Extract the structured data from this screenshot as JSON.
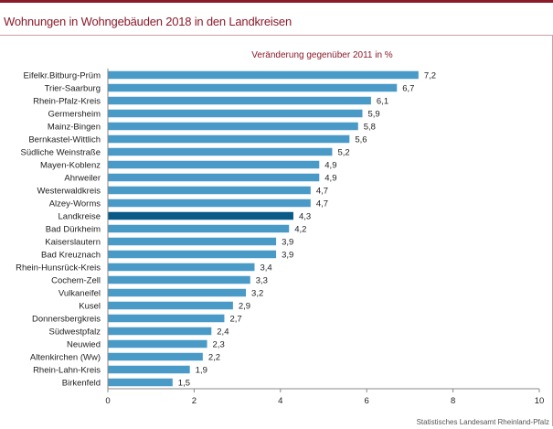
{
  "title": "Wohnungen in Wohngebäuden 2018 in den Landkreisen",
  "source": "Statistisches Landesamt Rheinland-Pfalz",
  "colors": {
    "bar": "#4a9ac8",
    "highlight": "#0a5a88",
    "title": "#8a1a2a",
    "axis": "#888888"
  },
  "chart_data": {
    "type": "bar",
    "orientation": "horizontal",
    "title": "Wohnungen in Wohngebäuden 2018 in den Landkreisen",
    "subtitle": "Veränderung gegenüber 2011 in %",
    "categories": [
      "Eifelkr.Bitburg-Prüm",
      "Trier-Saarburg",
      "Rhein-Pfalz-Kreis",
      "Germersheim",
      "Mainz-Bingen",
      "Bernkastel-Wittlich",
      "Südliche Weinstraße",
      "Mayen-Koblenz",
      "Ahrweiler",
      "Westerwaldkreis",
      "Alzey-Worms",
      "Landkreise",
      "Bad Dürkheim",
      "Kaiserslautern",
      "Bad Kreuznach",
      "Rhein-Hunsrück-Kreis",
      "Cochem-Zell",
      "Vulkaneifel",
      "Kusel",
      "Donnersbergkreis",
      "Südwestpfalz",
      "Neuwied",
      "Altenkirchen (Ww)",
      "Rhein-Lahn-Kreis",
      "Birkenfeld"
    ],
    "values": [
      7.2,
      6.7,
      6.1,
      5.9,
      5.8,
      5.6,
      5.2,
      4.9,
      4.9,
      4.7,
      4.7,
      4.3,
      4.2,
      3.9,
      3.9,
      3.4,
      3.3,
      3.2,
      2.9,
      2.7,
      2.4,
      2.3,
      2.2,
      1.9,
      1.5
    ],
    "value_labels": [
      "7,2",
      "6,7",
      "6,1",
      "5,9",
      "5,8",
      "5,6",
      "5,2",
      "4,9",
      "4,9",
      "4,7",
      "4,7",
      "4,3",
      "4,2",
      "3,9",
      "3,9",
      "3,4",
      "3,3",
      "3,2",
      "2,9",
      "2,7",
      "2,4",
      "2,3",
      "2,2",
      "1,9",
      "1,5"
    ],
    "highlight": "Landkreise",
    "xlim": [
      0,
      10
    ],
    "xticks": [
      0,
      2,
      4,
      6,
      8,
      10
    ],
    "grid": false,
    "legend": "none"
  }
}
